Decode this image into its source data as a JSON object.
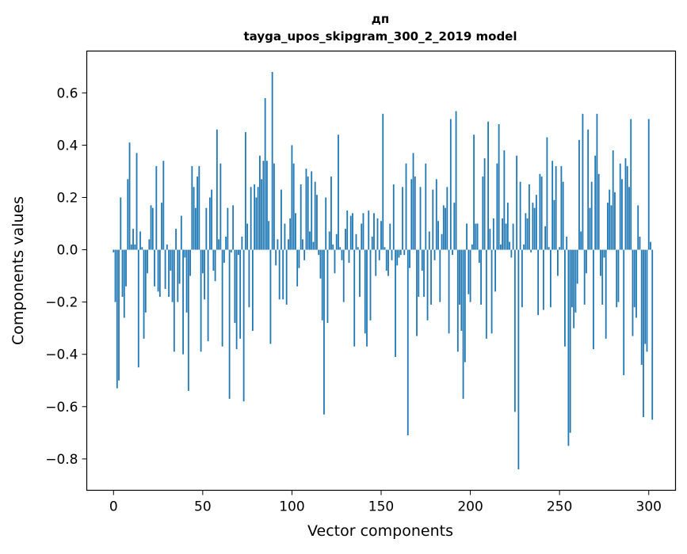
{
  "chart_data": {
    "type": "bar",
    "title_line1": "дп",
    "title_line2": "tayga_upos_skipgram_300_2_2019 model",
    "xlabel": "Vector components",
    "ylabel": "Components values",
    "xlim": [
      -15,
      315
    ],
    "ylim": [
      -0.92,
      0.76
    ],
    "xticks": [
      {
        "value": 0,
        "label": "0"
      },
      {
        "value": 50,
        "label": "50"
      },
      {
        "value": 100,
        "label": "100"
      },
      {
        "value": 150,
        "label": "150"
      },
      {
        "value": 200,
        "label": "200"
      },
      {
        "value": 250,
        "label": "250"
      },
      {
        "value": 300,
        "label": "300"
      }
    ],
    "yticks": [
      {
        "value": -0.8,
        "label": "−0.8"
      },
      {
        "value": -0.6,
        "label": "−0.6"
      },
      {
        "value": -0.4,
        "label": "−0.4"
      },
      {
        "value": -0.2,
        "label": "−0.2"
      },
      {
        "value": 0.0,
        "label": "0.0"
      },
      {
        "value": 0.2,
        "label": "0.2"
      },
      {
        "value": 0.4,
        "label": "0.4"
      },
      {
        "value": 0.6,
        "label": "0.6"
      }
    ],
    "bar_color": "#1f77b4",
    "values": [
      -0.01,
      -0.2,
      -0.53,
      -0.5,
      0.2,
      -0.18,
      -0.26,
      -0.14,
      0.27,
      0.41,
      0.02,
      0.08,
      0.02,
      0.37,
      -0.45,
      0.07,
      0.01,
      -0.34,
      -0.24,
      -0.09,
      0.04,
      0.17,
      0.16,
      -0.14,
      0.32,
      -0.16,
      -0.18,
      0.18,
      0.34,
      -0.15,
      0.02,
      -0.18,
      -0.08,
      -0.2,
      -0.39,
      0.08,
      -0.2,
      -0.13,
      0.13,
      -0.4,
      -0.03,
      -0.24,
      -0.54,
      -0.1,
      0.32,
      0.24,
      0.16,
      0.28,
      0.32,
      -0.39,
      -0.09,
      -0.19,
      0.16,
      -0.35,
      0.2,
      0.23,
      -0.08,
      -0.12,
      0.46,
      0.04,
      0.33,
      -0.37,
      -0.05,
      0.05,
      0.16,
      -0.57,
      -0.01,
      0.17,
      -0.28,
      -0.38,
      -0.02,
      -0.34,
      0.05,
      -0.58,
      0.45,
      0.1,
      -0.22,
      0.24,
      -0.31,
      0.25,
      0.2,
      0.24,
      0.36,
      0.27,
      0.34,
      0.58,
      0.34,
      0.11,
      -0.36,
      0.68,
      0.33,
      -0.06,
      0.04,
      -0.19,
      0.23,
      -0.19,
      0.1,
      -0.21,
      0.04,
      0.12,
      0.4,
      0.33,
      0.14,
      -0.14,
      -0.07,
      0.25,
      0.04,
      -0.04,
      0.31,
      0.28,
      0.07,
      0.3,
      0.03,
      0.26,
      0.21,
      -0.02,
      -0.11,
      -0.27,
      -0.63,
      0.2,
      -0.28,
      0.07,
      0.28,
      0.02,
      -0.09,
      0.06,
      0.44,
      0.01,
      -0.04,
      -0.2,
      0.08,
      0.15,
      -0.05,
      0.13,
      0.14,
      -0.37,
      0.06,
      0.01,
      -0.18,
      0.1,
      0.14,
      -0.32,
      -0.37,
      0.15,
      -0.27,
      0.05,
      0.14,
      -0.1,
      0.12,
      -0.04,
      0.11,
      0.52,
      0.01,
      -0.08,
      -0.1,
      0.1,
      -0.04,
      0.25,
      -0.41,
      -0.06,
      -0.03,
      -0.02,
      0.24,
      -0.02,
      0.33,
      -0.71,
      -0.07,
      0.27,
      0.37,
      0.28,
      -0.33,
      -0.18,
      0.24,
      -0.08,
      -0.18,
      0.33,
      -0.27,
      0.07,
      -0.21,
      0.23,
      -0.04,
      0.27,
      0.11,
      -0.2,
      0.06,
      0.17,
      0.16,
      0.24,
      -0.32,
      0.5,
      -0.02,
      0.18,
      0.53,
      -0.39,
      -0.21,
      -0.31,
      -0.57,
      -0.43,
      0.1,
      -0.17,
      -0.2,
      0.02,
      0.44,
      0.1,
      0.1,
      -0.05,
      -0.21,
      0.28,
      0.35,
      -0.34,
      0.49,
      0.08,
      -0.32,
      0.12,
      -0.16,
      0.33,
      0.48,
      0.02,
      0.12,
      0.38,
      0.1,
      0.18,
      0.03,
      -0.03,
      0.1,
      -0.62,
      0.36,
      -0.84,
      0.26,
      -0.22,
      0.02,
      0.14,
      0.12,
      0.25,
      -0.01,
      0.18,
      0.16,
      0.21,
      -0.25,
      0.29,
      0.28,
      -0.23,
      0.09,
      0.43,
      0.01,
      -0.22,
      0.34,
      0.19,
      0.32,
      -0.1,
      0.01,
      0.32,
      0.26,
      -0.37,
      0.05,
      -0.75,
      -0.7,
      -0.22,
      -0.3,
      -0.24,
      -0.13,
      0.42,
      0.07,
      0.52,
      -0.21,
      -0.09,
      0.46,
      0.16,
      0.26,
      -0.38,
      0.36,
      0.52,
      0.29,
      -0.1,
      -0.21,
      -0.03,
      -0.34,
      0.18,
      0.23,
      0.17,
      0.38,
      0.22,
      -0.22,
      -0.2,
      0.33,
      0.27,
      -0.48,
      0.35,
      0.32,
      0.24,
      0.5,
      -0.33,
      -0.22,
      -0.26,
      0.17,
      0.05,
      -0.44,
      -0.64,
      -0.36,
      -0.39,
      0.5,
      0.03,
      -0.65
    ]
  }
}
